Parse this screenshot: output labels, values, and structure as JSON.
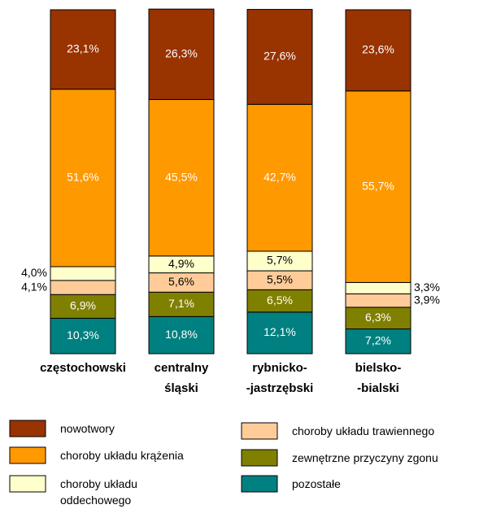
{
  "chart_data": {
    "type": "stacked_bar",
    "categories": [
      "częstochowski",
      "centralny\nśląski",
      "rybnicko-\n-jastrzębski",
      "bielsko-\n-bialski"
    ],
    "ylim": [
      0,
      100
    ],
    "series": [
      {
        "name": "nowotwory",
        "color": "#993300",
        "values": [
          23.1,
          26.3,
          27.6,
          23.6
        ],
        "value_labels": [
          "23,1%",
          "26,3%",
          "27,6%",
          "23,6%"
        ]
      },
      {
        "name": "choroby układu krążenia",
        "color": "#ff9900",
        "values": [
          51.6,
          45.5,
          42.7,
          55.7
        ],
        "value_labels": [
          "51,6%",
          "45,5%",
          "42,7%",
          "55,7%"
        ]
      },
      {
        "name": "choroby układu\noddechowego",
        "color": "#ffffcc",
        "values": [
          4.0,
          4.9,
          5.7,
          3.3
        ],
        "value_labels": [
          "4,0%",
          "4,9%",
          "5,7%",
          "3,3%"
        ]
      },
      {
        "name": "choroby układu trawiennego",
        "color": "#ffcc99",
        "values": [
          4.1,
          5.6,
          5.5,
          3.9
        ],
        "value_labels": [
          "4,1%",
          "5,6%",
          "5,5%",
          "3,9%"
        ]
      },
      {
        "name": "zewnętrzne przyczyny zgonu",
        "color": "#808000",
        "values": [
          6.9,
          7.1,
          6.5,
          6.3
        ],
        "value_labels": [
          "6,9%",
          "7,1%",
          "6,5%",
          "6,3%"
        ]
      },
      {
        "name": "pozostałe",
        "color": "#008080",
        "values": [
          10.3,
          10.8,
          12.1,
          7.2
        ],
        "value_labels": [
          "10,3%",
          "10,8%",
          "12,1%",
          "7,2%"
        ]
      }
    ]
  }
}
